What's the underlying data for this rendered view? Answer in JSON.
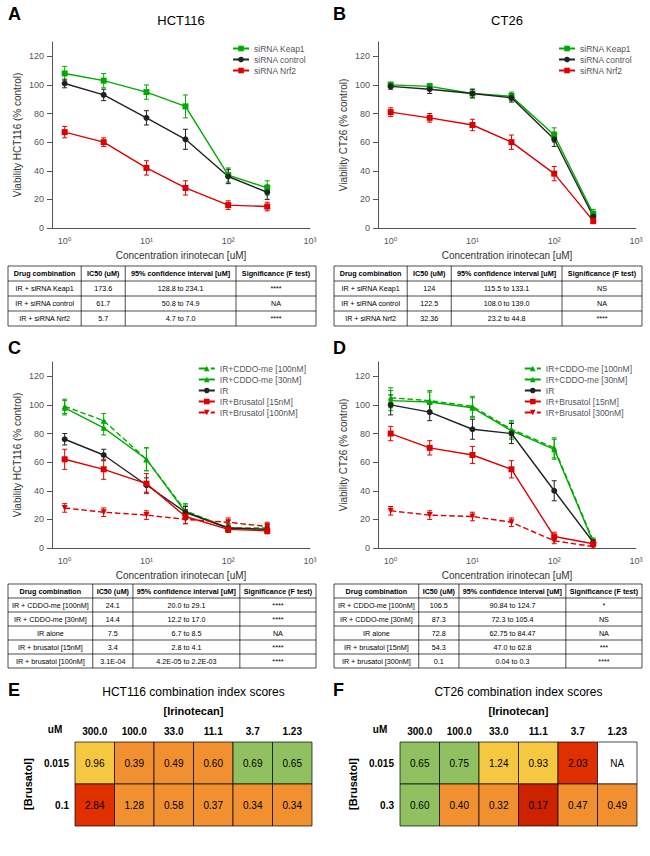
{
  "chart_data": [
    {
      "type": "line",
      "annotations": [
        "A"
      ],
      "title": "HCT116",
      "xlabel": "Concentration irinotecan [uM]",
      "ylabel": "Viability HCT116 (% control)",
      "log": "x",
      "xlim": [
        0.7,
        1000
      ],
      "ylim": [
        0,
        130
      ],
      "xticks": [
        {
          "value": 1,
          "label": "10⁰"
        },
        {
          "value": 10,
          "label": "10¹"
        },
        {
          "value": 100,
          "label": "10²"
        },
        {
          "value": 1000,
          "label": "10³"
        }
      ],
      "yticks": [
        0,
        20,
        40,
        60,
        80,
        100,
        120
      ],
      "grid": false,
      "legend": "upper right",
      "series": [
        {
          "name": "siRNA Keap1",
          "color": "#00aa00",
          "marker": "square",
          "line_style": "solid",
          "x": [
            1,
            3,
            10,
            30,
            100,
            300
          ],
          "values": [
            108,
            103,
            95,
            85,
            37,
            28
          ],
          "errors": [
            5,
            5,
            5,
            8,
            5,
            5
          ]
        },
        {
          "name": "siRNA control",
          "color": "#222222",
          "marker": "circle",
          "line_style": "solid",
          "x": [
            1,
            3,
            10,
            30,
            100,
            300
          ],
          "values": [
            101,
            93,
            77,
            62,
            36,
            25
          ],
          "errors": [
            3,
            4,
            5,
            7,
            5,
            5
          ]
        },
        {
          "name": "siRNA Nrf2",
          "color": "#dd0000",
          "marker": "square",
          "line_style": "solid",
          "x": [
            1,
            3,
            10,
            30,
            100,
            300
          ],
          "values": [
            67,
            60,
            42,
            28,
            16,
            15
          ],
          "errors": [
            4,
            3,
            5,
            5,
            3,
            3
          ]
        }
      ]
    },
    {
      "type": "line",
      "annotations": [
        "B"
      ],
      "title": "CT26",
      "xlabel": "Concentration irinotecan [uM]",
      "ylabel": "Viability CT26 (% control)",
      "log": "x",
      "xlim": [
        0.7,
        1000
      ],
      "ylim": [
        0,
        130
      ],
      "xticks": [
        {
          "value": 1,
          "label": "10⁰"
        },
        {
          "value": 10,
          "label": "10¹"
        },
        {
          "value": 100,
          "label": "10²"
        },
        {
          "value": 1000,
          "label": "10³"
        }
      ],
      "yticks": [
        0,
        20,
        40,
        60,
        80,
        100,
        120
      ],
      "grid": false,
      "legend": "upper right",
      "series": [
        {
          "name": "siRNA Keap1",
          "color": "#00aa00",
          "marker": "square",
          "line_style": "solid",
          "x": [
            1,
            3,
            10,
            30,
            100,
            300
          ],
          "values": [
            100,
            99,
            94,
            92,
            65,
            10
          ],
          "errors": [
            2,
            2,
            3,
            3,
            5,
            3
          ]
        },
        {
          "name": "siRNA control",
          "color": "#222222",
          "marker": "circle",
          "line_style": "solid",
          "x": [
            1,
            3,
            10,
            30,
            100,
            300
          ],
          "values": [
            99,
            97,
            94,
            91,
            62,
            8
          ],
          "errors": [
            2,
            3,
            3,
            3,
            5,
            2
          ]
        },
        {
          "name": "siRNA Nrf2",
          "color": "#dd0000",
          "marker": "square",
          "line_style": "solid",
          "x": [
            1,
            3,
            10,
            30,
            100,
            300
          ],
          "values": [
            81,
            77,
            72,
            60,
            38,
            5
          ],
          "errors": [
            3,
            3,
            4,
            5,
            5,
            2
          ]
        }
      ]
    },
    {
      "type": "table",
      "columns": [
        "Drug combination",
        "IC50 (uM)",
        "95% confidence interval [uM]",
        "Significance (F test)"
      ],
      "rows": [
        [
          "IR + siRNA Keap1",
          "173.6",
          "128.8 to 234.1",
          "****"
        ],
        [
          "IR + siRNA control",
          "61.7",
          "50.8 to 74.9",
          "NA"
        ],
        [
          "IR + siRNA Nrf2",
          "5.7",
          "4.7 to 7.0",
          "****"
        ]
      ]
    },
    {
      "type": "table",
      "columns": [
        "Drug combination",
        "IC50 (uM)",
        "95% confidence interval [uM]",
        "Significance (F test)"
      ],
      "rows": [
        [
          "IR + siRNA Keap1",
          "124",
          "115.5 to 133.1",
          "NS"
        ],
        [
          "IR + siRNA control",
          "122.5",
          "108.0 to 139.0",
          "NA"
        ],
        [
          "IR + siRNA Nrf2",
          "32.36",
          "23.2 to 44.8",
          "****"
        ]
      ]
    },
    {
      "type": "line",
      "annotations": [
        "C"
      ],
      "xlabel": "Concentration irinotecan [uM]",
      "ylabel": "Viability HCT116 (% control)",
      "log": "x",
      "xlim": [
        0.7,
        1000
      ],
      "ylim": [
        0,
        130
      ],
      "xticks": [
        {
          "value": 1,
          "label": "10⁰"
        },
        {
          "value": 10,
          "label": "10¹"
        },
        {
          "value": 100,
          "label": "10²"
        },
        {
          "value": 1000,
          "label": "10³"
        }
      ],
      "yticks": [
        0,
        20,
        40,
        60,
        80,
        100,
        120
      ],
      "grid": false,
      "legend": "upper right",
      "series": [
        {
          "name": "IR+CDDO-me [100nM]",
          "color": "#00aa00",
          "marker": "triangle-up",
          "line_style": "dashed",
          "x": [
            1,
            3,
            10,
            30,
            100,
            300
          ],
          "values": [
            99,
            89,
            62,
            26,
            14,
            14
          ],
          "errors": [
            5,
            5,
            8,
            5,
            3,
            3
          ]
        },
        {
          "name": "IR+CDDO-me [30nM]",
          "color": "#00aa00",
          "marker": "triangle-up",
          "line_style": "solid",
          "x": [
            1,
            3,
            10,
            30,
            100,
            300
          ],
          "values": [
            98,
            84,
            62,
            25,
            14,
            13
          ],
          "errors": [
            5,
            5,
            8,
            5,
            3,
            3
          ]
        },
        {
          "name": "IR",
          "color": "#222222",
          "marker": "circle",
          "line_style": "solid",
          "x": [
            1,
            3,
            10,
            30,
            100,
            300
          ],
          "values": [
            76,
            65,
            44,
            25,
            14,
            13
          ],
          "errors": [
            4,
            4,
            5,
            4,
            2,
            2
          ]
        },
        {
          "name": "IR+Brusatol [15nM]",
          "color": "#dd0000",
          "marker": "square",
          "line_style": "solid",
          "x": [
            1,
            3,
            10,
            30,
            100,
            300
          ],
          "values": [
            62,
            55,
            45,
            22,
            13,
            12
          ],
          "errors": [
            7,
            7,
            7,
            5,
            2,
            2
          ]
        },
        {
          "name": "IR+Brusatol [100nM]",
          "color": "#dd0000",
          "marker": "triangle-down",
          "line_style": "dashed",
          "x": [
            1,
            3,
            10,
            30,
            100,
            300
          ],
          "values": [
            28,
            25,
            23,
            20,
            18,
            15
          ],
          "errors": [
            3,
            3,
            3,
            3,
            3,
            3
          ]
        }
      ]
    },
    {
      "type": "line",
      "annotations": [
        "D"
      ],
      "xlabel": "Concentration irinotecan [uM]",
      "ylabel": "Viability CT26 (% control)",
      "log": "x",
      "xlim": [
        0.7,
        1000
      ],
      "ylim": [
        0,
        130
      ],
      "xticks": [
        {
          "value": 1,
          "label": "10⁰"
        },
        {
          "value": 10,
          "label": "10¹"
        },
        {
          "value": 100,
          "label": "10²"
        },
        {
          "value": 1000,
          "label": "10³"
        }
      ],
      "yticks": [
        0,
        20,
        40,
        60,
        80,
        100,
        120
      ],
      "grid": false,
      "legend": "upper right",
      "series": [
        {
          "name": "IR+CDDO-me [100nM]",
          "color": "#00aa00",
          "marker": "triangle-up",
          "line_style": "dashed",
          "x": [
            1,
            3,
            10,
            30,
            100,
            300
          ],
          "values": [
            105,
            103,
            99,
            83,
            70,
            5
          ],
          "errors": [
            7,
            7,
            7,
            6,
            7,
            2
          ]
        },
        {
          "name": "IR+CDDO-me [30nM]",
          "color": "#00aa00",
          "marker": "triangle-up",
          "line_style": "solid",
          "x": [
            1,
            3,
            10,
            30,
            100,
            300
          ],
          "values": [
            103,
            102,
            98,
            82,
            69,
            4
          ],
          "errors": [
            7,
            7,
            7,
            6,
            7,
            2
          ]
        },
        {
          "name": "IR",
          "color": "#222222",
          "marker": "circle",
          "line_style": "solid",
          "x": [
            1,
            3,
            10,
            30,
            100,
            300
          ],
          "values": [
            100,
            95,
            83,
            80,
            40,
            4
          ],
          "errors": [
            7,
            6,
            7,
            7,
            7,
            2
          ]
        },
        {
          "name": "IR+Brusatol [15nM]",
          "color": "#dd0000",
          "marker": "square",
          "line_style": "solid",
          "x": [
            1,
            3,
            10,
            30,
            100,
            300
          ],
          "values": [
            80,
            70,
            65,
            55,
            8,
            3
          ],
          "errors": [
            5,
            5,
            6,
            6,
            3,
            1
          ]
        },
        {
          "name": "IR+Brusatol [300nM]",
          "color": "#dd0000",
          "marker": "triangle-down",
          "line_style": "dashed",
          "x": [
            1,
            3,
            10,
            30,
            100,
            300
          ],
          "values": [
            26,
            23,
            22,
            18,
            5,
            1
          ],
          "errors": [
            3,
            3,
            3,
            3,
            2,
            1
          ]
        }
      ]
    },
    {
      "type": "table",
      "columns": [
        "Drug combination",
        "IC50 (uM)",
        "95% confidence interval [uM]",
        "Significance (F test)"
      ],
      "rows": [
        [
          "IR + CDDO-me [100nM]",
          "24.1",
          "20.0 to 29.1",
          "****"
        ],
        [
          "IR + CDDO-me [30nM]",
          "14.4",
          "12.2 to 17.0",
          "****"
        ],
        [
          "IR alone",
          "7.5",
          "6.7 to 8.5",
          "NA"
        ],
        [
          "IR + brusatol [15nM]",
          "3.4",
          "2.8 to 4.1",
          "****"
        ],
        [
          "IR + brusatol [100nM]",
          "3.1E-04",
          "4.2E-05 to 2.2E-03",
          "****"
        ]
      ]
    },
    {
      "type": "table",
      "columns": [
        "Drug combination",
        "IC50 (uM)",
        "95% confidence interval [uM]",
        "Significance (F test)"
      ],
      "rows": [
        [
          "IR + CDDO-me [100nM]",
          "106.5",
          "90.84 to 124.7",
          "*"
        ],
        [
          "IR + CDDO-me [30nM]",
          "87.3",
          "72.3 to 105.4",
          "NS"
        ],
        [
          "IR alone",
          "72.8",
          "62.75 to 84.47",
          "NA"
        ],
        [
          "IR + brusatol [15nM]",
          "54.3",
          "47.0 to 62.8",
          "***"
        ],
        [
          "IR + brusatol [300nM]",
          "0.1",
          "0.04 to 0.3",
          "****"
        ]
      ]
    },
    {
      "type": "heatmap",
      "annotations": [
        "E"
      ],
      "title": "HCT116 combination index scores",
      "xlabel": "[Irinotecan]",
      "ylabel": "[Brusatol]",
      "corner_label": "uM",
      "x": [
        "300.0",
        "100.0",
        "33.0",
        "11.1",
        "3.7",
        "1.23"
      ],
      "y": [
        "0.015",
        "0.1"
      ],
      "values": [
        [
          0.96,
          0.39,
          0.49,
          0.6,
          0.69,
          0.65
        ],
        [
          2.84,
          1.28,
          0.58,
          0.37,
          0.34,
          0.34
        ]
      ],
      "value_labels": [
        [
          "0.96",
          "0.39",
          "0.49",
          "0.60",
          "0.69",
          "0.65"
        ],
        [
          "2.84",
          "1.28",
          "0.58",
          "0.37",
          "0.34",
          "0.34"
        ]
      ],
      "colors": [
        [
          "#f5c842",
          "#f09030",
          "#f09030",
          "#f09030",
          "#90c060",
          "#90c060"
        ],
        [
          "#e03000",
          "#f09030",
          "#f09030",
          "#f09030",
          "#f09030",
          "#f09030"
        ]
      ],
      "data_labels": true
    },
    {
      "type": "heatmap",
      "annotations": [
        "F"
      ],
      "title": "CT26 combination index scores",
      "xlabel": "[Irinotecan]",
      "ylabel": "[Brusatol]",
      "corner_label": "uM",
      "x": [
        "300.0",
        "100.0",
        "33.0",
        "11.1",
        "3.7",
        "1.23"
      ],
      "y": [
        "0.015",
        "0.3"
      ],
      "values": [
        [
          0.65,
          0.75,
          1.24,
          0.93,
          2.03,
          null
        ],
        [
          0.6,
          0.4,
          0.32,
          0.17,
          0.47,
          0.49
        ]
      ],
      "value_labels": [
        [
          "0.65",
          "0.75",
          "1.24",
          "0.93",
          "2.03",
          "NA"
        ],
        [
          "0.60",
          "0.40",
          "0.32",
          "0.17",
          "0.47",
          "0.49"
        ]
      ],
      "colors": [
        [
          "#90c060",
          "#90c060",
          "#f5c842",
          "#f5c842",
          "#e03000",
          "#ffffff"
        ],
        [
          "#90c060",
          "#f09030",
          "#f09030",
          "#cc2200",
          "#f09030",
          "#f09030"
        ]
      ],
      "data_labels": true
    }
  ]
}
